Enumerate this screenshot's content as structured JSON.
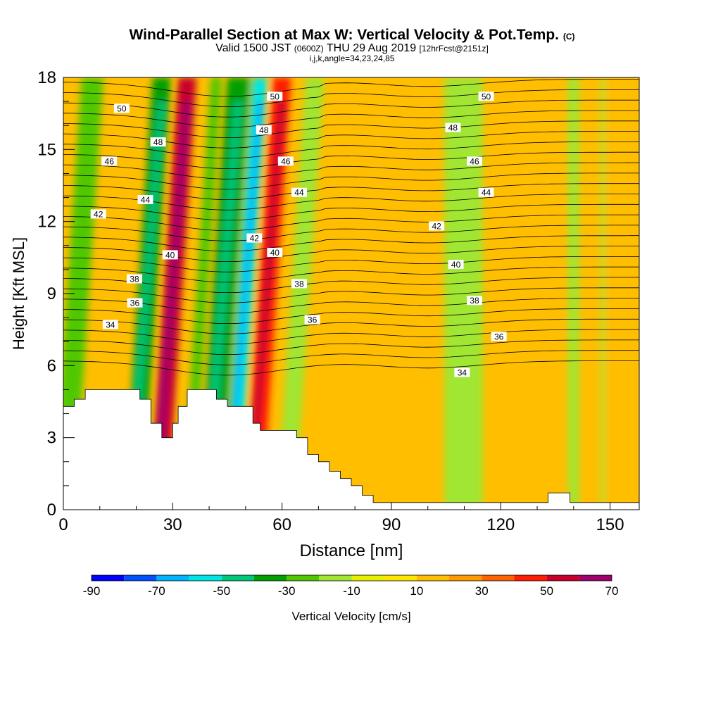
{
  "title": {
    "main": "Wind-Parallel Section at Max W: Vertical Velocity & Pot.Temp.",
    "copyright": "(C)",
    "valid_prefix": "Valid 1500 JST",
    "valid_utc": "(0600Z)",
    "valid_date": "THU 29 Aug 2019",
    "forecast": "[12hrFcst@2151z]",
    "ijk": "i,j,k,angle=34,23,24,85"
  },
  "chart_data": {
    "type": "heatmap",
    "xlabel": "Distance [nm]",
    "ylabel": "Height [Kft MSL]",
    "xlim": [
      0,
      158
    ],
    "ylim": [
      0,
      18
    ],
    "x_ticks": [
      "0",
      "30",
      "60",
      "90",
      "120",
      "150"
    ],
    "y_ticks": [
      "0",
      "3",
      "6",
      "9",
      "12",
      "15",
      "18"
    ],
    "colorbar": {
      "label": "Vertical Velocity [cm/s]",
      "tick_labels": [
        "-90",
        "-70",
        "-50",
        "-30",
        "-10",
        "10",
        "30",
        "50",
        "70"
      ],
      "levels": [
        -90,
        -80,
        -70,
        -60,
        -50,
        -40,
        -30,
        -20,
        -10,
        0,
        10,
        20,
        30,
        40,
        50,
        60,
        70
      ],
      "colors": [
        "#0000ff",
        "#0050ff",
        "#00b4ff",
        "#00e6e6",
        "#00c87a",
        "#00a000",
        "#50c800",
        "#a0e632",
        "#e6f000",
        "#ffe600",
        "#ffbe00",
        "#ff9b00",
        "#ff6400",
        "#ff1e00",
        "#c8002d",
        "#a0006e",
        "#6e0096"
      ]
    },
    "vertical_velocity_fields": [
      {
        "x": 4,
        "width": 6,
        "value": -30
      },
      {
        "x": 23,
        "width": 5,
        "value": -35
      },
      {
        "x": 30,
        "width": 5,
        "value": 55
      },
      {
        "x": 38,
        "width": 3,
        "value": -25
      },
      {
        "x": 44,
        "width": 6,
        "value": -40
      },
      {
        "x": 50,
        "width": 4,
        "value": -55
      },
      {
        "x": 56,
        "width": 5,
        "value": 45
      },
      {
        "x": 65,
        "width": 5,
        "value": -20
      },
      {
        "x": 77,
        "width": 4,
        "value": 15
      },
      {
        "x": 98,
        "width": 5,
        "value": 15
      },
      {
        "x": 108,
        "width": 7,
        "value": -15
      },
      {
        "x": 112,
        "width": 6,
        "value": -12
      },
      {
        "x": 132,
        "width": 4,
        "value": 15
      },
      {
        "x": 140,
        "width": 3,
        "value": -12
      },
      {
        "x": 149,
        "width": 3,
        "value": -15
      },
      {
        "x": 150,
        "width": 3,
        "value": 15
      }
    ],
    "theta_contours": {
      "levels": [
        34,
        36,
        38,
        40,
        42,
        44,
        46,
        48,
        50
      ],
      "labels": [
        {
          "text": "50",
          "x": 16,
          "y": 16.7
        },
        {
          "text": "48",
          "x": 26,
          "y": 15.3
        },
        {
          "text": "46",
          "x": 12.6,
          "y": 14.5
        },
        {
          "text": "44",
          "x": 22.5,
          "y": 12.9
        },
        {
          "text": "42",
          "x": 9.6,
          "y": 12.3
        },
        {
          "text": "40",
          "x": 29.3,
          "y": 10.6
        },
        {
          "text": "38",
          "x": 19.5,
          "y": 9.6
        },
        {
          "text": "36",
          "x": 19.6,
          "y": 8.6
        },
        {
          "text": "34",
          "x": 12.9,
          "y": 7.7
        },
        {
          "text": "50",
          "x": 58,
          "y": 17.2
        },
        {
          "text": "48",
          "x": 55,
          "y": 15.8
        },
        {
          "text": "46",
          "x": 61,
          "y": 14.5
        },
        {
          "text": "44",
          "x": 64.7,
          "y": 13.2
        },
        {
          "text": "42",
          "x": 52.4,
          "y": 11.3
        },
        {
          "text": "40",
          "x": 58,
          "y": 10.7
        },
        {
          "text": "38",
          "x": 64.7,
          "y": 9.4
        },
        {
          "text": "36",
          "x": 68.3,
          "y": 7.9
        },
        {
          "text": "50",
          "x": 116,
          "y": 17.2
        },
        {
          "text": "48",
          "x": 106.9,
          "y": 15.9
        },
        {
          "text": "46",
          "x": 112.8,
          "y": 14.5
        },
        {
          "text": "44",
          "x": 116,
          "y": 13.2
        },
        {
          "text": "42",
          "x": 102.4,
          "y": 11.8
        },
        {
          "text": "40",
          "x": 107.7,
          "y": 10.2
        },
        {
          "text": "38",
          "x": 112.8,
          "y": 8.7
        },
        {
          "text": "36",
          "x": 119.5,
          "y": 7.2
        },
        {
          "text": "34",
          "x": 109.4,
          "y": 5.7
        }
      ]
    },
    "terrain_kft": [
      [
        0,
        4.3
      ],
      [
        3,
        4.3
      ],
      [
        3,
        4.6
      ],
      [
        6,
        4.6
      ],
      [
        6,
        5.0
      ],
      [
        21,
        5.0
      ],
      [
        21,
        4.6
      ],
      [
        24,
        4.6
      ],
      [
        24,
        3.6
      ],
      [
        27,
        3.6
      ],
      [
        27,
        3.0
      ],
      [
        30,
        3.0
      ],
      [
        30,
        3.6
      ],
      [
        31.5,
        3.6
      ],
      [
        31.5,
        4.3
      ],
      [
        34,
        4.3
      ],
      [
        34,
        5.0
      ],
      [
        42,
        5.0
      ],
      [
        42,
        4.6
      ],
      [
        45,
        4.6
      ],
      [
        45,
        4.3
      ],
      [
        52,
        4.3
      ],
      [
        52,
        3.6
      ],
      [
        54,
        3.6
      ],
      [
        54,
        3.3
      ],
      [
        64,
        3.3
      ],
      [
        64,
        3.0
      ],
      [
        67,
        3.0
      ],
      [
        67,
        2.3
      ],
      [
        70,
        2.3
      ],
      [
        70,
        2.0
      ],
      [
        73,
        2.0
      ],
      [
        73,
        1.6
      ],
      [
        76,
        1.6
      ],
      [
        76,
        1.3
      ],
      [
        79,
        1.3
      ],
      [
        79,
        1.0
      ],
      [
        82,
        1.0
      ],
      [
        82,
        0.6
      ],
      [
        85,
        0.6
      ],
      [
        85,
        0.3
      ],
      [
        133,
        0.3
      ],
      [
        133,
        0.7
      ],
      [
        139,
        0.7
      ],
      [
        139,
        0.3
      ],
      [
        158,
        0.3
      ],
      [
        158,
        0
      ]
    ]
  }
}
